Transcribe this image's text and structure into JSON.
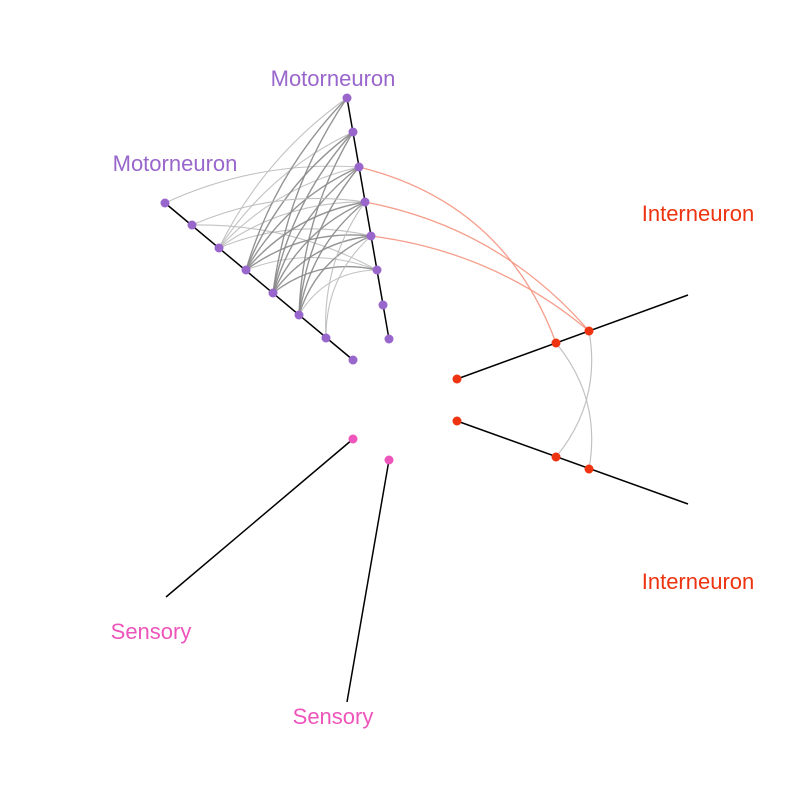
{
  "diagram": {
    "type": "hive-plot",
    "axes": [
      {
        "id": "motor_a",
        "label": "Motorneuron",
        "color": "#9966cc",
        "node_count": 8
      },
      {
        "id": "motor_b",
        "label": "Motorneuron",
        "color": "#9966cc",
        "node_count": 8
      },
      {
        "id": "inter_a",
        "label": "Interneuron",
        "color": "#ee3311",
        "node_count": 3
      },
      {
        "id": "inter_b",
        "label": "Interneuron",
        "color": "#ee3311",
        "node_count": 3
      },
      {
        "id": "sensory_a",
        "label": "Sensory",
        "color": "#ee55bb",
        "node_count": 1
      },
      {
        "id": "sensory_b",
        "label": "Sensory",
        "color": "#ee55bb",
        "node_count": 1
      }
    ],
    "edge_colors": {
      "motor_weak": "#bbbbbb",
      "motor_strong": "#888888",
      "motor_to_inter": "#f4937f",
      "inter_to_inter": "#bbbbbb"
    },
    "axis_line_color": "#000000"
  }
}
